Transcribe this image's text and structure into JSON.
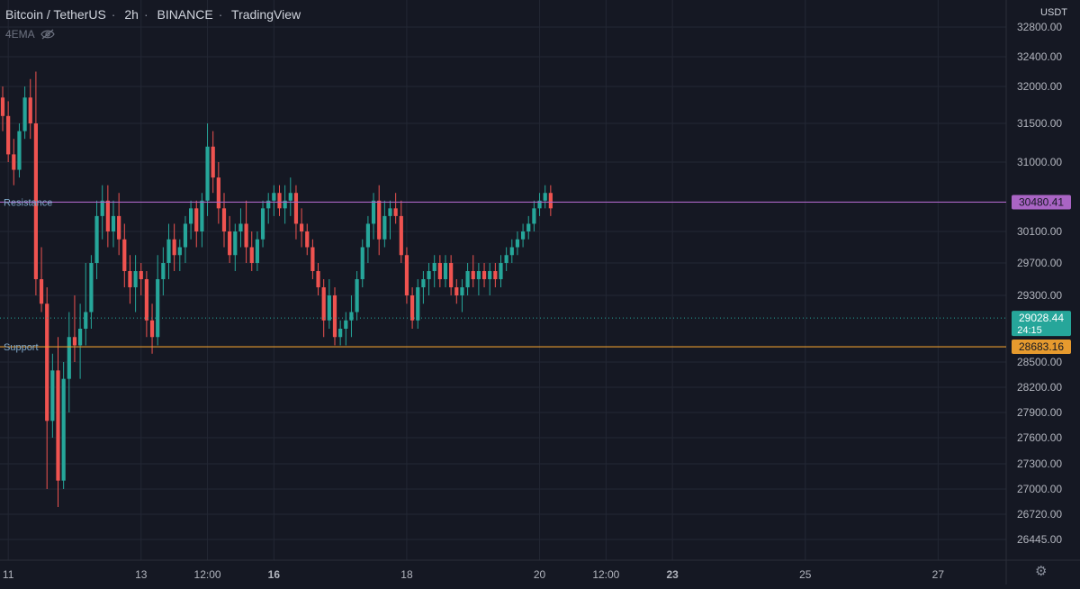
{
  "header": {
    "symbol": "Bitcoin / TetherUS",
    "interval": "2h",
    "exchange": "BINANCE",
    "source": "TradingView",
    "indicator": "4EMA",
    "currency": "USDT"
  },
  "colors": {
    "background": "#151823",
    "up": "#26a69a",
    "down": "#ef5350",
    "resistance": "#a964c4",
    "support": "#e69a2e",
    "last_price": "#26a69a"
  },
  "icons": {
    "visibility": "eye-crossed-icon",
    "settings": "gear-icon"
  },
  "chart_data": {
    "type": "candlestick",
    "ylim": [
      26445,
      32800
    ],
    "y_ticks": [
      32800,
      32400,
      32000,
      31500,
      31000,
      30100,
      29700,
      29300,
      28500,
      28200,
      27900,
      27600,
      27300,
      27000,
      26720,
      26445
    ],
    "y_tick_labels": [
      "32800.00",
      "32400.00",
      "32000.00",
      "31500.00",
      "31000.00",
      "30100.00",
      "29700.00",
      "29300.00",
      "28500.00",
      "28200.00",
      "27900.00",
      "27600.00",
      "27300.00",
      "27000.00",
      "26720.00",
      "26445.00"
    ],
    "x_labels": [
      {
        "label": "11",
        "bold": false,
        "candle": 1
      },
      {
        "label": "13",
        "bold": false,
        "candle": 25
      },
      {
        "label": "12:00",
        "bold": false,
        "candle": 37
      },
      {
        "label": "16",
        "bold": true,
        "candle": 49
      },
      {
        "label": "18",
        "bold": false,
        "candle": 73
      },
      {
        "label": "20",
        "bold": false,
        "candle": 97
      },
      {
        "label": "12:00",
        "bold": false,
        "candle": 109
      },
      {
        "label": "23",
        "bold": true,
        "candle": 121
      },
      {
        "label": "25",
        "bold": false,
        "candle": 145
      },
      {
        "label": "27",
        "bold": false,
        "candle": 169
      }
    ],
    "lines": [
      {
        "name": "Resistance",
        "value": 30480.41,
        "label": "30480.41",
        "color": "#a964c4"
      },
      {
        "name": "Support",
        "value": 28683.16,
        "label": "28683.16",
        "color": "#e69a2e"
      }
    ],
    "last_price": {
      "value": 29028.44,
      "label": "29028.44",
      "countdown": "24:15"
    },
    "ohlc": [
      [
        31850,
        32000,
        31400,
        31600
      ],
      [
        31600,
        31800,
        31000,
        31100
      ],
      [
        31100,
        31300,
        30700,
        30900
      ],
      [
        30900,
        31500,
        30800,
        31400
      ],
      [
        31400,
        32000,
        31300,
        31850
      ],
      [
        31850,
        32100,
        31300,
        31500
      ],
      [
        31500,
        32200,
        29300,
        29500
      ],
      [
        29500,
        29900,
        29100,
        29200
      ],
      [
        29200,
        29400,
        27000,
        27800
      ],
      [
        27800,
        28600,
        27600,
        28400
      ],
      [
        28400,
        28800,
        26800,
        27100
      ],
      [
        27100,
        28500,
        27000,
        28300
      ],
      [
        28300,
        29100,
        27900,
        28800
      ],
      [
        28800,
        29300,
        28500,
        28700
      ],
      [
        28700,
        29200,
        28300,
        28900
      ],
      [
        28900,
        29700,
        28700,
        29100
      ],
      [
        29100,
        29800,
        28900,
        29700
      ],
      [
        29700,
        30500,
        29500,
        30300
      ],
      [
        30300,
        30700,
        30000,
        30500
      ],
      [
        30500,
        30700,
        29900,
        30100
      ],
      [
        30100,
        30500,
        29900,
        30300
      ],
      [
        30300,
        30600,
        29800,
        30000
      ],
      [
        30000,
        30200,
        29400,
        29600
      ],
      [
        29600,
        29800,
        29200,
        29400
      ],
      [
        29400,
        29800,
        29100,
        29600
      ],
      [
        29600,
        29700,
        29300,
        29500
      ],
      [
        29500,
        29600,
        28800,
        29000
      ],
      [
        29000,
        29200,
        28600,
        28800
      ],
      [
        28800,
        29800,
        28700,
        29500
      ],
      [
        29500,
        29900,
        29300,
        29700
      ],
      [
        29700,
        30200,
        29500,
        30000
      ],
      [
        30000,
        30200,
        29600,
        29800
      ],
      [
        29800,
        30000,
        29600,
        29900
      ],
      [
        29900,
        30300,
        29700,
        30200
      ],
      [
        30200,
        30500,
        30000,
        30400
      ],
      [
        30400,
        30500,
        29900,
        30100
      ],
      [
        30100,
        30600,
        29900,
        30500
      ],
      [
        30500,
        31500,
        30300,
        31200
      ],
      [
        31200,
        31400,
        30600,
        30800
      ],
      [
        30800,
        31000,
        30200,
        30400
      ],
      [
        30400,
        30600,
        29900,
        30100
      ],
      [
        30100,
        30300,
        29700,
        29800
      ],
      [
        29800,
        30200,
        29600,
        30100
      ],
      [
        30100,
        30400,
        29900,
        30200
      ],
      [
        30200,
        30500,
        29700,
        29900
      ],
      [
        29900,
        30100,
        29600,
        29700
      ],
      [
        29700,
        30100,
        29600,
        30000
      ],
      [
        30000,
        30500,
        29900,
        30400
      ],
      [
        30400,
        30600,
        30200,
        30500
      ],
      [
        30500,
        30700,
        30300,
        30600
      ],
      [
        30600,
        30700,
        30300,
        30400
      ],
      [
        30400,
        30700,
        30200,
        30500
      ],
      [
        30500,
        30800,
        30300,
        30600
      ],
      [
        30600,
        30700,
        30000,
        30200
      ],
      [
        30200,
        30400,
        29900,
        30100
      ],
      [
        30100,
        30200,
        29800,
        29900
      ],
      [
        29900,
        30000,
        29500,
        29600
      ],
      [
        29600,
        29700,
        29300,
        29400
      ],
      [
        29400,
        29500,
        28800,
        29000
      ],
      [
        29000,
        29500,
        28900,
        29300
      ],
      [
        29300,
        29400,
        28700,
        28800
      ],
      [
        28800,
        29000,
        28700,
        28900
      ],
      [
        28900,
        29100,
        28700,
        29000
      ],
      [
        29000,
        29300,
        28800,
        29100
      ],
      [
        29100,
        29600,
        29000,
        29500
      ],
      [
        29500,
        30000,
        29400,
        29900
      ],
      [
        29900,
        30300,
        29700,
        30200
      ],
      [
        30200,
        30600,
        30000,
        30500
      ],
      [
        30500,
        30700,
        29800,
        30000
      ],
      [
        30000,
        30500,
        29900,
        30300
      ],
      [
        30300,
        30500,
        30000,
        30400
      ],
      [
        30400,
        30600,
        30200,
        30300
      ],
      [
        30300,
        30500,
        29700,
        29800
      ],
      [
        29800,
        29900,
        29200,
        29300
      ],
      [
        29300,
        29400,
        28900,
        29000
      ],
      [
        29000,
        29500,
        28900,
        29400
      ],
      [
        29400,
        29600,
        29200,
        29500
      ],
      [
        29500,
        29700,
        29300,
        29600
      ],
      [
        29600,
        29800,
        29400,
        29700
      ],
      [
        29700,
        29800,
        29400,
        29500
      ],
      [
        29500,
        29800,
        29400,
        29700
      ],
      [
        29700,
        29800,
        29300,
        29400
      ],
      [
        29400,
        29500,
        29200,
        29300
      ],
      [
        29300,
        29500,
        29100,
        29400
      ],
      [
        29400,
        29700,
        29300,
        29600
      ],
      [
        29600,
        29800,
        29400,
        29500
      ],
      [
        29500,
        29700,
        29300,
        29600
      ],
      [
        29600,
        29700,
        29400,
        29500
      ],
      [
        29500,
        29700,
        29300,
        29600
      ],
      [
        29600,
        29700,
        29400,
        29500
      ],
      [
        29500,
        29800,
        29400,
        29700
      ],
      [
        29700,
        29900,
        29600,
        29800
      ],
      [
        29800,
        30000,
        29700,
        29900
      ],
      [
        29900,
        30100,
        29800,
        30000
      ],
      [
        30000,
        30200,
        29900,
        30100
      ],
      [
        30100,
        30300,
        30000,
        30200
      ],
      [
        30200,
        30500,
        30100,
        30400
      ],
      [
        30400,
        30600,
        30300,
        30500
      ],
      [
        30500,
        30700,
        30400,
        30600
      ],
      [
        30600,
        30700,
        30300,
        30400
      ]
    ]
  }
}
